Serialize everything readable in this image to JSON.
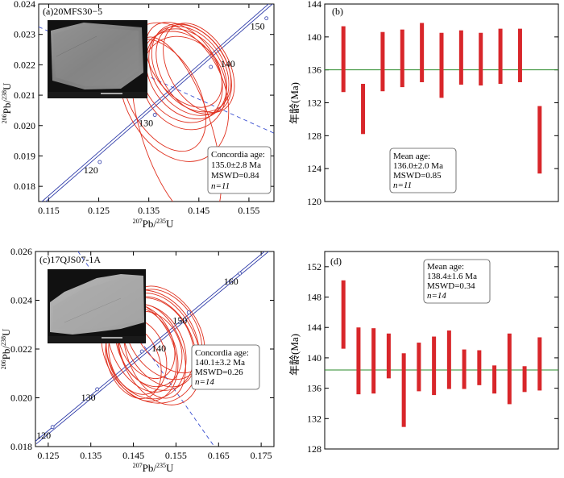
{
  "chart_data": [
    {
      "panel": "a",
      "type": "scatter",
      "label": "(a)20MFS30−5",
      "xlabel_parts": [
        "207",
        "Pb/",
        "235",
        "U"
      ],
      "ylabel_parts": [
        "206",
        "Pb/",
        "238",
        "U"
      ],
      "xlim": [
        0.113,
        0.16
      ],
      "ylim": [
        0.0175,
        0.024
      ],
      "xticks": [
        "0.115",
        "0.125",
        "0.135",
        "0.145",
        "0.155"
      ],
      "xtick_values": [
        0.115,
        0.125,
        0.135,
        0.145,
        0.155
      ],
      "yticks": [
        "0.018",
        "0.019",
        "0.020",
        "0.021",
        "0.022",
        "0.023",
        "0.024"
      ],
      "ytick_values": [
        0.018,
        0.019,
        0.02,
        0.021,
        0.022,
        0.023,
        0.024
      ],
      "concordia_ages": [
        {
          "label": "120",
          "x": 0.1252,
          "y": 0.0188
        },
        {
          "label": "130",
          "x": 0.1362,
          "y": 0.02035
        },
        {
          "label": "140",
          "x": 0.1474,
          "y": 0.02193
        },
        {
          "label": "150",
          "x": 0.1585,
          "y": 0.02353
        }
      ],
      "concordia_line": [
        [
          0.113,
          0.01735
        ],
        [
          0.16,
          0.0241
        ]
      ],
      "discordia_line": [
        [
          0.113,
          0.02325
        ],
        [
          0.16,
          0.01975
        ]
      ],
      "ellipses": [
        {
          "cx": 0.14,
          "cy": 0.0211,
          "rx": 0.01,
          "ry": 0.0006,
          "angle": 25
        },
        {
          "cx": 0.142,
          "cy": 0.0214,
          "rx": 0.008,
          "ry": 0.0004,
          "angle": 30
        },
        {
          "cx": 0.1415,
          "cy": 0.0216,
          "rx": 0.0075,
          "ry": 0.0004,
          "angle": 33
        },
        {
          "cx": 0.1425,
          "cy": 0.0217,
          "rx": 0.0072,
          "ry": 0.0004,
          "angle": 34
        },
        {
          "cx": 0.143,
          "cy": 0.0218,
          "rx": 0.007,
          "ry": 0.0004,
          "angle": 35
        },
        {
          "cx": 0.1435,
          "cy": 0.0219,
          "rx": 0.0068,
          "ry": 0.0004,
          "angle": 36
        },
        {
          "cx": 0.144,
          "cy": 0.02185,
          "rx": 0.0065,
          "ry": 0.0004,
          "angle": 32
        },
        {
          "cx": 0.142,
          "cy": 0.022,
          "rx": 0.006,
          "ry": 0.0004,
          "angle": 38
        },
        {
          "cx": 0.145,
          "cy": 0.0219,
          "rx": 0.006,
          "ry": 0.0004,
          "angle": 30
        },
        {
          "cx": 0.138,
          "cy": 0.021,
          "rx": 0.007,
          "ry": 0.0005,
          "angle": 28
        },
        {
          "cx": 0.1405,
          "cy": 0.01985,
          "rx": 0.007,
          "ry": 0.0008,
          "angle": 18
        }
      ],
      "annotation": [
        "Concordia age:",
        "135.0±2.8 Ma",
        "MSWD=0.84",
        "n=11"
      ]
    },
    {
      "panel": "b",
      "type": "bar",
      "label": "(b)",
      "ylabel": "年龄(Ma)",
      "ylim": [
        120,
        144
      ],
      "yticks": [
        "120",
        "124",
        "128",
        "132",
        "136",
        "140",
        "144"
      ],
      "ytick_values": [
        120,
        124,
        128,
        132,
        136,
        140,
        144
      ],
      "mean_line": 136.0,
      "values": [
        [
          133.3,
          141.3
        ],
        [
          128.2,
          134.3
        ],
        [
          133.4,
          140.6
        ],
        [
          133.9,
          140.9
        ],
        [
          134.5,
          141.7
        ],
        [
          132.6,
          140.5
        ],
        [
          134.2,
          140.8
        ],
        [
          134.1,
          140.5
        ],
        [
          134.3,
          141.0
        ],
        [
          134.5,
          141.0
        ],
        [
          123.4,
          131.6
        ]
      ],
      "annotation": [
        "Mean age:",
        "136.0±2.0 Ma",
        "MSWD=0.85",
        "n=11"
      ]
    },
    {
      "panel": "c",
      "type": "scatter",
      "label": "(c)17QJS07-1A",
      "xlabel_parts": [
        "207",
        "Pb/",
        "235",
        "U"
      ],
      "ylabel_parts": [
        "206",
        "Pb/",
        "238",
        "U"
      ],
      "xlim": [
        0.122,
        0.178
      ],
      "ylim": [
        0.018,
        0.026
      ],
      "xticks": [
        "0.125",
        "0.135",
        "0.145",
        "0.155",
        "0.165",
        "0.175"
      ],
      "xtick_values": [
        0.125,
        0.135,
        0.145,
        0.155,
        0.165,
        0.175
      ],
      "yticks": [
        "0.018",
        "0.020",
        "0.022",
        "0.024",
        "0.026"
      ],
      "ytick_values": [
        0.018,
        0.02,
        0.022,
        0.024,
        0.026
      ],
      "concordia_ages": [
        {
          "label": "120",
          "x": 0.126,
          "y": 0.0188
        },
        {
          "label": "130",
          "x": 0.1365,
          "y": 0.02035
        },
        {
          "label": "140",
          "x": 0.147,
          "y": 0.0219
        },
        {
          "label": "150",
          "x": 0.158,
          "y": 0.0235
        },
        {
          "label": "160",
          "x": 0.17,
          "y": 0.0251
        }
      ],
      "concordia_line": [
        [
          0.122,
          0.01815
        ],
        [
          0.178,
          0.02625
        ]
      ],
      "discordia_line": [
        [
          0.13,
          0.0265
        ],
        [
          0.164,
          0.018
        ]
      ],
      "ellipses": [
        {
          "cx": 0.149,
          "cy": 0.0221,
          "rx": 0.011,
          "ry": 0.0006,
          "angle": 25
        },
        {
          "cx": 0.148,
          "cy": 0.0219,
          "rx": 0.009,
          "ry": 0.0005,
          "angle": 22
        },
        {
          "cx": 0.147,
          "cy": 0.0218,
          "rx": 0.008,
          "ry": 0.0005,
          "angle": 20
        },
        {
          "cx": 0.15,
          "cy": 0.0222,
          "rx": 0.0085,
          "ry": 0.0005,
          "angle": 28
        },
        {
          "cx": 0.149,
          "cy": 0.022,
          "rx": 0.007,
          "ry": 0.0004,
          "angle": 24
        },
        {
          "cx": 0.151,
          "cy": 0.0223,
          "rx": 0.0075,
          "ry": 0.0005,
          "angle": 30
        },
        {
          "cx": 0.146,
          "cy": 0.0217,
          "rx": 0.0065,
          "ry": 0.0004,
          "angle": 18
        },
        {
          "cx": 0.152,
          "cy": 0.0226,
          "rx": 0.008,
          "ry": 0.0005,
          "angle": 32
        },
        {
          "cx": 0.148,
          "cy": 0.0223,
          "rx": 0.006,
          "ry": 0.0004,
          "angle": 26
        },
        {
          "cx": 0.15,
          "cy": 0.0219,
          "rx": 0.0065,
          "ry": 0.0005,
          "angle": 20
        },
        {
          "cx": 0.145,
          "cy": 0.0215,
          "rx": 0.006,
          "ry": 0.0004,
          "angle": 22
        },
        {
          "cx": 0.153,
          "cy": 0.0228,
          "rx": 0.007,
          "ry": 0.0005,
          "angle": 35
        },
        {
          "cx": 0.147,
          "cy": 0.0221,
          "rx": 0.007,
          "ry": 0.0005,
          "angle": 27
        },
        {
          "cx": 0.151,
          "cy": 0.022,
          "rx": 0.009,
          "ry": 0.0006,
          "angle": 23
        }
      ],
      "annotation": [
        "Concordia age:",
        "140.1±3.2 Ma",
        "MSWD=0.26",
        "n=14"
      ]
    },
    {
      "panel": "d",
      "type": "bar",
      "label": "(d)",
      "ylabel": "年龄(Ma)",
      "ylim": [
        128,
        154
      ],
      "yticks": [
        "128",
        "132",
        "136",
        "140",
        "144",
        "148",
        "152"
      ],
      "ytick_values": [
        128,
        132,
        136,
        140,
        144,
        148,
        152
      ],
      "mean_line": 138.4,
      "values": [
        [
          141.2,
          150.2
        ],
        [
          135.2,
          144.0
        ],
        [
          135.3,
          143.9
        ],
        [
          137.3,
          143.2
        ],
        [
          130.9,
          140.6
        ],
        [
          135.6,
          142.0
        ],
        [
          135.1,
          142.8
        ],
        [
          135.9,
          143.6
        ],
        [
          135.9,
          141.1
        ],
        [
          136.4,
          141.0
        ],
        [
          135.3,
          139.0
        ],
        [
          133.9,
          143.2
        ],
        [
          135.5,
          138.9
        ],
        [
          135.7,
          142.7
        ]
      ],
      "annotation": [
        "Mean age:",
        "138.4±1.6 Ma",
        "MSWD=0.34",
        "n=14"
      ]
    }
  ]
}
